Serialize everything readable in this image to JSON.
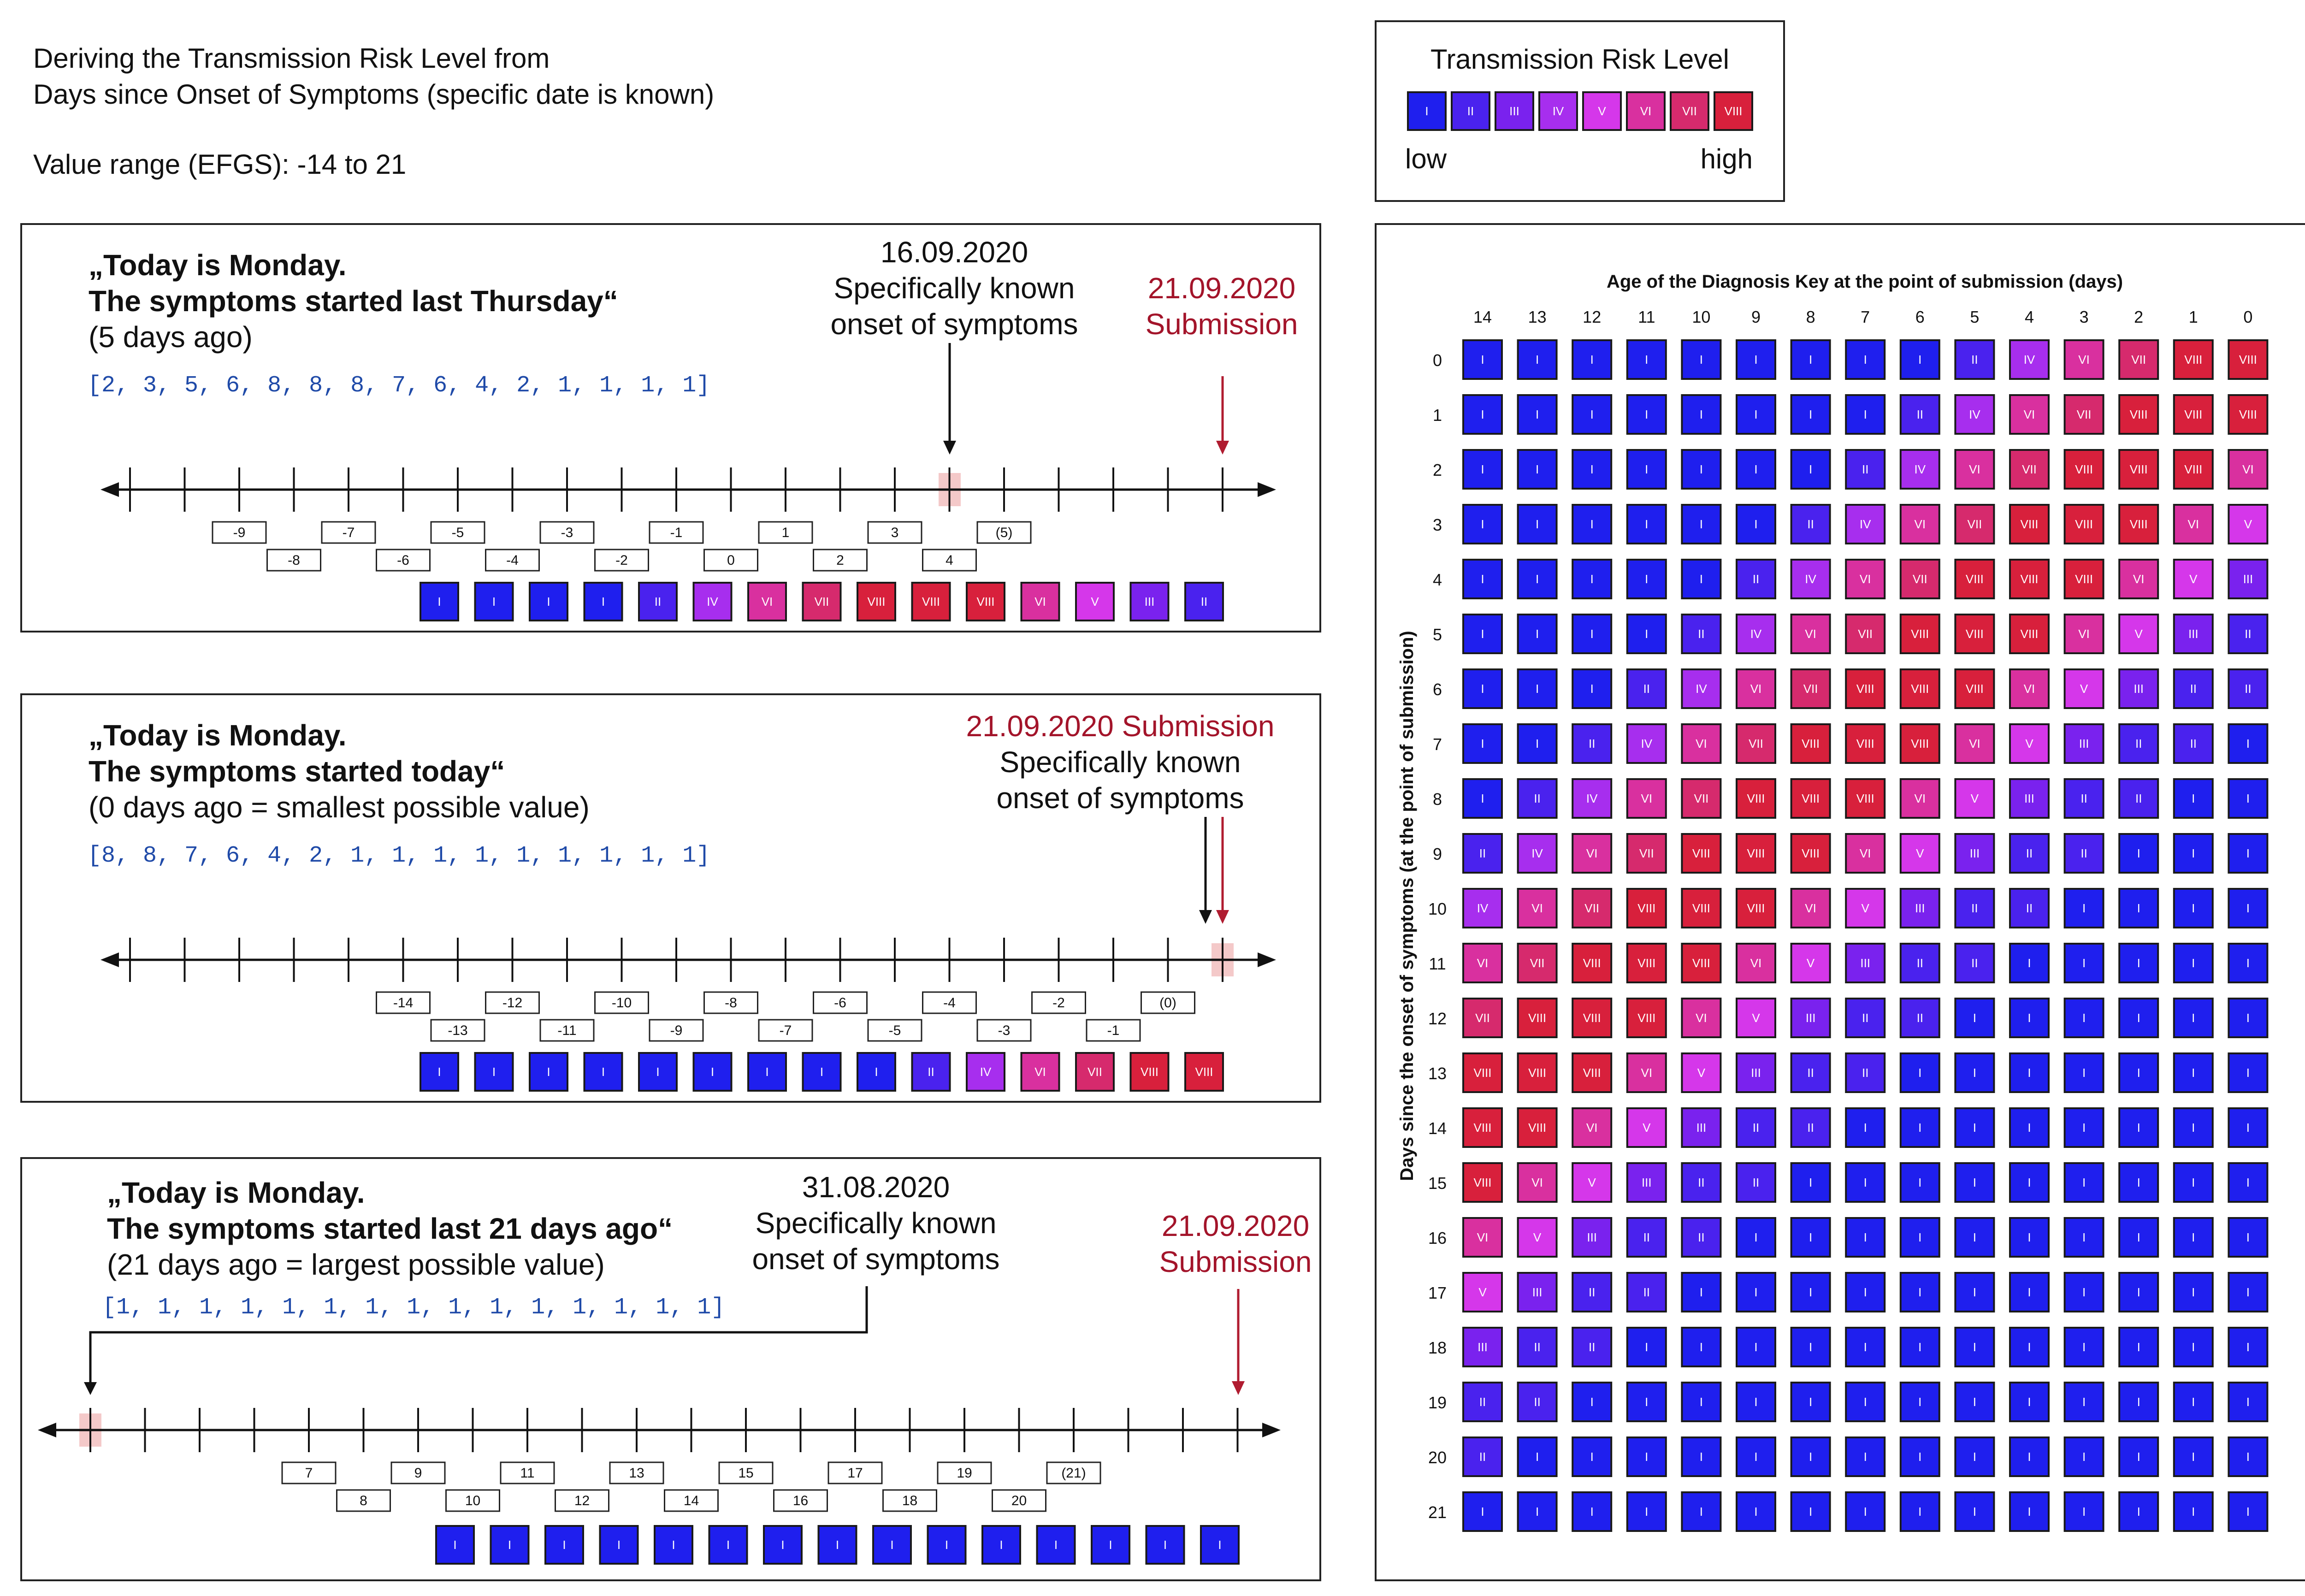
{
  "header": {
    "title_line1": "Deriving the Transmission Risk Level from",
    "title_line2": "Days since Onset of Symptoms (specific date is known)",
    "value_range": "Value range (EFGS): -14 to 21"
  },
  "legend": {
    "title": "Transmission Risk Level",
    "levels": [
      "I",
      "II",
      "III",
      "IV",
      "V",
      "VI",
      "VII",
      "VIII"
    ],
    "low_label": "low",
    "high_label": "high",
    "colors": [
      "#1f1fee",
      "#4a22ee",
      "#7a22ee",
      "#a72eee",
      "#d537ea",
      "#d9309f",
      "#d62a6d",
      "#d8203c"
    ]
  },
  "scenarios": [
    {
      "quote_line1": "„Today is Monday.",
      "quote_line2": "The symptoms started last Thursday“",
      "note": "(5 days ago)",
      "array_text": "[2, 3, 5, 6, 8, 8, 8, 7, 6, 4, 2, 1, 1, 1, 1]",
      "onset_date": "16.09.2020",
      "onset_line1": "Specifically known",
      "onset_line2": "onset of symptoms",
      "submission_date": "21.09.2020",
      "submission_label": "Submission",
      "tick_labels": [
        "-9",
        "-8",
        "-7",
        "-6",
        "-5",
        "-4",
        "-3",
        "-2",
        "-1",
        "0",
        "1",
        "2",
        "3",
        "4",
        "(5)"
      ],
      "risk_values": [
        1,
        1,
        1,
        1,
        2,
        4,
        6,
        7,
        8,
        8,
        8,
        6,
        5,
        3,
        2
      ]
    },
    {
      "quote_line1": "„Today is Monday.",
      "quote_line2": "The symptoms started today“",
      "note": "(0 days ago = smallest possible value)",
      "array_text": "[8, 8, 7, 6, 4, 2, 1, 1, 1, 1, 1, 1, 1, 1, 1]",
      "submission_combined": "21.09.2020 Submission",
      "onset_line1": "Specifically known",
      "onset_line2": "onset of symptoms",
      "tick_labels": [
        "-14",
        "-13",
        "-12",
        "-11",
        "-10",
        "-9",
        "-8",
        "-7",
        "-6",
        "-5",
        "-4",
        "-3",
        "-2",
        "-1",
        "(0)"
      ],
      "risk_values": [
        1,
        1,
        1,
        1,
        1,
        1,
        1,
        1,
        1,
        2,
        4,
        6,
        7,
        8,
        8
      ]
    },
    {
      "quote_line1": "„Today is Monday.",
      "quote_line2": "The symptoms started last 21 days ago“",
      "note": "(21 days ago = largest possible value)",
      "array_text": "[1, 1, 1, 1, 1, 1, 1, 1, 1, 1, 1, 1, 1, 1, 1]",
      "onset_date": "31.08.2020",
      "onset_line1": "Specifically known",
      "onset_line2": "onset of symptoms",
      "submission_date": "21.09.2020",
      "submission_label": "Submission",
      "tick_labels": [
        "7",
        "8",
        "9",
        "10",
        "11",
        "12",
        "13",
        "14",
        "15",
        "16",
        "17",
        "18",
        "19",
        "20",
        "(21)"
      ],
      "risk_values": [
        1,
        1,
        1,
        1,
        1,
        1,
        1,
        1,
        1,
        1,
        1,
        1,
        1,
        1,
        1
      ]
    }
  ],
  "matrix": {
    "title": "Age of the Diagnosis Key at the point of submission (days)",
    "y_label": "Days since the onset of symptoms (at the point of submission)",
    "col_labels": [
      "14",
      "13",
      "12",
      "11",
      "10",
      "9",
      "8",
      "7",
      "6",
      "5",
      "4",
      "3",
      "2",
      "1",
      "0"
    ],
    "row_labels": [
      "0",
      "1",
      "2",
      "3",
      "4",
      "5",
      "6",
      "7",
      "8",
      "9",
      "10",
      "11",
      "12",
      "13",
      "14",
      "15",
      "16",
      "17",
      "18",
      "19",
      "20",
      "21"
    ],
    "rows": [
      [
        1,
        1,
        1,
        1,
        1,
        1,
        1,
        1,
        1,
        2,
        4,
        6,
        7,
        8,
        8
      ],
      [
        1,
        1,
        1,
        1,
        1,
        1,
        1,
        1,
        2,
        4,
        6,
        7,
        8,
        8,
        8
      ],
      [
        1,
        1,
        1,
        1,
        1,
        1,
        1,
        2,
        4,
        6,
        7,
        8,
        8,
        8,
        6
      ],
      [
        1,
        1,
        1,
        1,
        1,
        1,
        2,
        4,
        6,
        7,
        8,
        8,
        8,
        6,
        5
      ],
      [
        1,
        1,
        1,
        1,
        1,
        2,
        4,
        6,
        7,
        8,
        8,
        8,
        6,
        5,
        3
      ],
      [
        1,
        1,
        1,
        1,
        2,
        4,
        6,
        7,
        8,
        8,
        8,
        6,
        5,
        3,
        2
      ],
      [
        1,
        1,
        1,
        2,
        4,
        6,
        7,
        8,
        8,
        8,
        6,
        5,
        3,
        2,
        2
      ],
      [
        1,
        1,
        2,
        4,
        6,
        7,
        8,
        8,
        8,
        6,
        5,
        3,
        2,
        2,
        1
      ],
      [
        1,
        2,
        4,
        6,
        7,
        8,
        8,
        8,
        6,
        5,
        3,
        2,
        2,
        1,
        1
      ],
      [
        2,
        4,
        6,
        7,
        8,
        8,
        8,
        6,
        5,
        3,
        2,
        2,
        1,
        1,
        1
      ],
      [
        4,
        6,
        7,
        8,
        8,
        8,
        6,
        5,
        3,
        2,
        2,
        1,
        1,
        1,
        1
      ],
      [
        6,
        7,
        8,
        8,
        8,
        6,
        5,
        3,
        2,
        2,
        1,
        1,
        1,
        1,
        1
      ],
      [
        7,
        8,
        8,
        8,
        6,
        5,
        3,
        2,
        2,
        1,
        1,
        1,
        1,
        1,
        1
      ],
      [
        8,
        8,
        8,
        6,
        5,
        3,
        2,
        2,
        1,
        1,
        1,
        1,
        1,
        1,
        1
      ],
      [
        8,
        8,
        6,
        5,
        3,
        2,
        2,
        1,
        1,
        1,
        1,
        1,
        1,
        1,
        1
      ],
      [
        8,
        6,
        5,
        3,
        2,
        2,
        1,
        1,
        1,
        1,
        1,
        1,
        1,
        1,
        1
      ],
      [
        6,
        5,
        3,
        2,
        2,
        1,
        1,
        1,
        1,
        1,
        1,
        1,
        1,
        1,
        1
      ],
      [
        5,
        3,
        2,
        2,
        1,
        1,
        1,
        1,
        1,
        1,
        1,
        1,
        1,
        1,
        1
      ],
      [
        3,
        2,
        2,
        1,
        1,
        1,
        1,
        1,
        1,
        1,
        1,
        1,
        1,
        1,
        1
      ],
      [
        2,
        2,
        1,
        1,
        1,
        1,
        1,
        1,
        1,
        1,
        1,
        1,
        1,
        1,
        1
      ],
      [
        2,
        1,
        1,
        1,
        1,
        1,
        1,
        1,
        1,
        1,
        1,
        1,
        1,
        1,
        1
      ],
      [
        1,
        1,
        1,
        1,
        1,
        1,
        1,
        1,
        1,
        1,
        1,
        1,
        1,
        1,
        1
      ]
    ]
  }
}
